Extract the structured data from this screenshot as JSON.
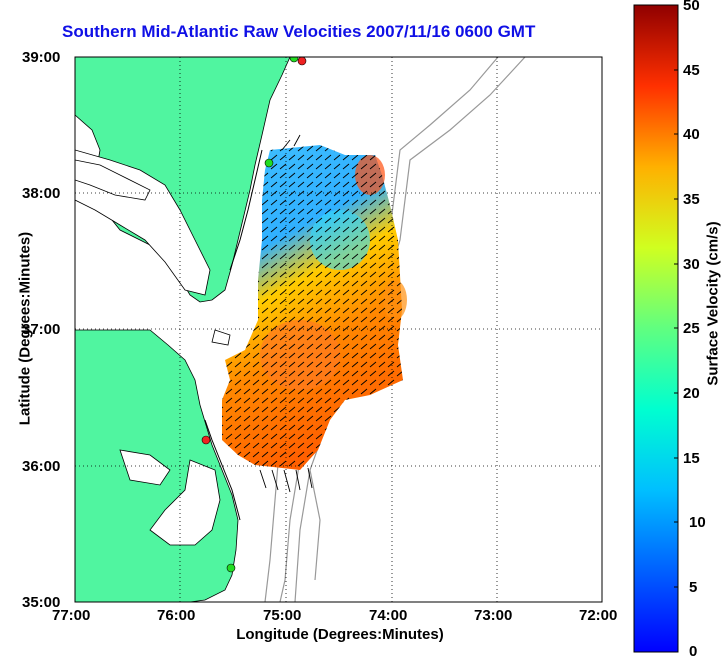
{
  "title": "Southern Mid-Atlantic Raw Velocities 2007/11/16 0600 GMT",
  "xlabel": "Longitude (Degrees:Minutes)",
  "ylabel": "Latitude (Degrees:Minutes)",
  "x_ticks": [
    "77:00",
    "76:00",
    "75:00",
    "74:00",
    "73:00",
    "72:00"
  ],
  "y_ticks": [
    "39:00",
    "38:00",
    "37:00",
    "36:00",
    "35:00"
  ],
  "colorbar": {
    "label": "Surface Velocity (cm/s)",
    "ticks": [
      "50",
      "45",
      "40",
      "35",
      "30",
      "25",
      "20",
      "15",
      "10",
      "5",
      "0"
    ],
    "range": [
      0,
      50
    ],
    "colormap": "jet"
  },
  "colors": {
    "title": "#1010e6",
    "land": "#50f5a0",
    "coastline": "#000000",
    "bathymetry": "#999999",
    "site_marker_green": "#22dd22",
    "site_marker_red": "#ee2222"
  },
  "map": {
    "lon_range": [
      -77,
      -72
    ],
    "lat_range": [
      35,
      39
    ],
    "grid": "dotted"
  }
}
